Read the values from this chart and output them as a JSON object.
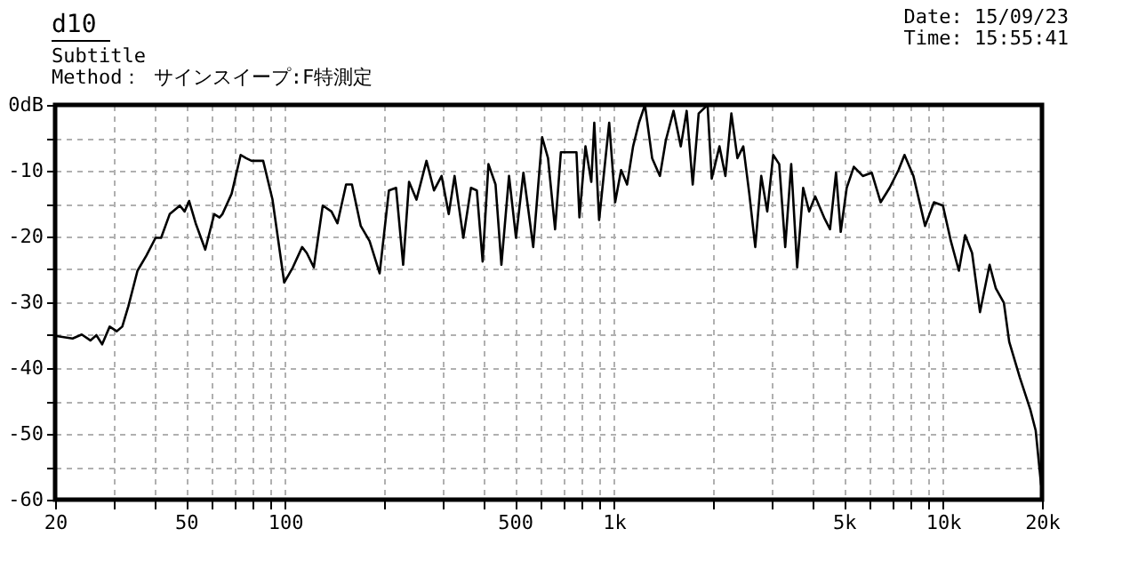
{
  "chart_data": {
    "type": "line",
    "title": "d10",
    "subtitle": "Subtitle",
    "annotations": [
      "Method： サインスイープ:F特測定",
      "Date: 15/09/23",
      "Time: 15:55:41"
    ],
    "log": "x",
    "grid": true,
    "line_style": "solid",
    "marker": "none",
    "xlim": [
      20,
      20000
    ],
    "xticks": [
      20,
      {
        "value": 30,
        "label": null
      },
      {
        "value": 40,
        "label": null
      },
      50,
      {
        "value": 60,
        "label": null
      },
      {
        "value": 70,
        "label": null
      },
      {
        "value": 80,
        "label": null
      },
      {
        "value": 90,
        "label": null
      },
      100,
      {
        "value": 200,
        "label": null
      },
      {
        "value": 300,
        "label": null
      },
      {
        "value": 400,
        "label": null
      },
      500,
      {
        "value": 600,
        "label": null
      },
      {
        "value": 700,
        "label": null
      },
      {
        "value": 800,
        "label": null
      },
      {
        "value": 900,
        "label": null
      },
      {
        "value": 1000,
        "label": "1k"
      },
      {
        "value": 2000,
        "label": null
      },
      {
        "value": 3000,
        "label": null
      },
      {
        "value": 4000,
        "label": null
      },
      {
        "value": 5000,
        "label": "5k"
      },
      {
        "value": 6000,
        "label": null
      },
      {
        "value": 7000,
        "label": null
      },
      {
        "value": 8000,
        "label": null
      },
      {
        "value": 9000,
        "label": null
      },
      {
        "value": 10000,
        "label": "10k"
      },
      {
        "value": 20000,
        "label": "20k"
      }
    ],
    "ylim": [
      -60,
      0
    ],
    "yticks": [
      -60,
      {
        "value": -55,
        "label": null
      },
      -50,
      {
        "value": -45,
        "label": null
      },
      -40,
      {
        "value": -35,
        "label": null
      },
      -30,
      {
        "value": -25,
        "label": null
      },
      -20,
      {
        "value": -15,
        "label": null
      },
      -10,
      {
        "value": -5,
        "label": null
      },
      {
        "value": 0,
        "label": "0dB"
      }
    ],
    "series": [
      {
        "color": "#000000",
        "x": [
          20,
          22.6,
          24.1,
          25.6,
          26.7,
          27.8,
          29.3,
          30.8,
          32.0,
          33.4,
          35.6,
          37.9,
          40.4,
          42.0,
          44.6,
          47.9,
          49.5,
          51.1,
          53.5,
          57.2,
          60.9,
          63.2,
          64.5,
          68.8,
          73.3,
          76.1,
          79.1,
          85.8,
          91.6,
          99.4,
          105.6,
          112.7,
          116.4,
          122.3,
          130.2,
          138.4,
          144.3,
          153.3,
          159.7,
          169.9,
          180.7,
          193.9,
          206.9,
          217.5,
          228.6,
          238.2,
          250.9,
          269.1,
          283.7,
          299.2,
          314.5,
          327.6,
          348.3,
          367.4,
          382.8,
          398.7,
          415.3,
          436.4,
          454.7,
          479.6,
          503.6,
          530.4,
          568.1,
          604.7,
          630.1,
          662.0,
          689.4,
          769,
          785,
          819,
          853,
          871,
          901,
          967,
          1008,
          1051,
          1096,
          1143,
          1191,
          1242,
          1306,
          1379,
          1437,
          1517,
          1596,
          1663,
          1735,
          1809,
          1925,
          1982,
          2092,
          2181,
          2274,
          2372,
          2472,
          2578,
          2688,
          2803,
          2923,
          3048,
          3179,
          3315,
          3457,
          3604,
          3759,
          3920,
          4087,
          4350,
          4537,
          4731,
          4889,
          5098,
          5359,
          5706,
          6074,
          6466,
          6884,
          7328,
          7640,
          8134,
          8825,
          9390,
          9996,
          10570,
          11180,
          11680,
          12260,
          12960,
          13860,
          14480,
          15320,
          15900,
          17120,
          18430,
          19140,
          19860,
          20000
        ],
        "values": [
          -35.1,
          -35.5,
          -34.9,
          -35.8,
          -35.0,
          -36.4,
          -33.7,
          -34.4,
          -33.7,
          -30.6,
          -25.2,
          -22.9,
          -20.2,
          -20.2,
          -16.6,
          -15.3,
          -16.2,
          -14.6,
          -18.0,
          -22.0,
          -16.6,
          -17.1,
          -16.6,
          -13.5,
          -7.6,
          -8.1,
          -8.5,
          -8.5,
          -14.4,
          -27.0,
          -24.7,
          -21.6,
          -22.5,
          -24.7,
          -15.3,
          -16.2,
          -18.0,
          -12.1,
          -12.1,
          -18.4,
          -20.7,
          -25.6,
          -13.0,
          -12.6,
          -24.3,
          -11.7,
          -14.4,
          -8.5,
          -13.0,
          -10.8,
          -16.6,
          -10.8,
          -20.2,
          -12.6,
          -13.0,
          -23.8,
          -9.0,
          -12.1,
          -24.3,
          -10.8,
          -20.2,
          -10.3,
          -21.6,
          -4.9,
          -8.1,
          -18.9,
          -7.2,
          -7.2,
          -17.1,
          -6.3,
          -11.7,
          -2.7,
          -17.5,
          -2.7,
          -14.8,
          -9.9,
          -12.1,
          -6.3,
          -2.7,
          0,
          -8.1,
          -10.8,
          -5.4,
          -0.9,
          -6.3,
          -0.9,
          -12.1,
          -1.3,
          0,
          -11.2,
          -6.3,
          -10.8,
          -1.3,
          -8.1,
          -6.3,
          -13.5,
          -21.6,
          -10.8,
          -16.2,
          -7.6,
          -9.0,
          -21.6,
          -9.0,
          -24.7,
          -12.6,
          -16.2,
          -13.9,
          -17.1,
          -18.9,
          -10.3,
          -19.3,
          -12.6,
          -9.4,
          -10.8,
          -10.3,
          -14.8,
          -12.6,
          -9.9,
          -7.6,
          -10.8,
          -18.4,
          -14.8,
          -15.3,
          -20.7,
          -25.2,
          -19.8,
          -22.5,
          -31.5,
          -24.3,
          -27.9,
          -30.1,
          -36.0,
          -41.4,
          -46.3,
          -49.5,
          -57.6,
          -58.5
        ]
      }
    ]
  }
}
